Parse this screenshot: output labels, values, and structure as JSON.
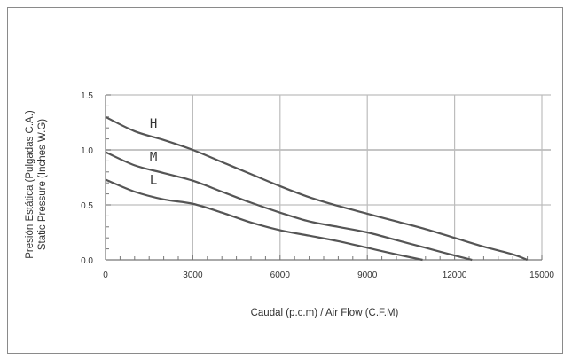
{
  "chart_data": {
    "type": "line",
    "xlabel": "Caudal (p.c.m) / Air Flow (C.F.M)",
    "ylabel_lines": [
      "Presión Estática (Pulgadas C.A.)",
      "Static Pressure (Inches W.G)"
    ],
    "xlim": [
      0,
      15000
    ],
    "ylim": [
      0,
      1.5
    ],
    "x_ticks": [
      0,
      3000,
      6000,
      9000,
      12000,
      15000
    ],
    "x_tick_labels": [
      "0",
      "3000",
      "6000",
      "9000",
      "12000",
      "15000"
    ],
    "y_ticks": [
      0,
      0.5,
      1.0,
      1.5
    ],
    "y_tick_labels": [
      "0.0",
      "0.5",
      "1.0",
      "1.5"
    ],
    "grid": true,
    "series": [
      {
        "name": "H",
        "x": [
          0,
          1000,
          2000,
          3000,
          4000,
          5000,
          6000,
          7000,
          8000,
          9000,
          10000,
          11000,
          12000,
          13000,
          14000,
          14500
        ],
        "y": [
          1.3,
          1.17,
          1.09,
          1.0,
          0.89,
          0.78,
          0.67,
          0.57,
          0.49,
          0.42,
          0.35,
          0.28,
          0.2,
          0.12,
          0.05,
          0.0
        ]
      },
      {
        "name": "M",
        "x": [
          0,
          1000,
          2000,
          3000,
          4000,
          5000,
          6000,
          7000,
          8000,
          9000,
          10000,
          11000,
          12000,
          12600
        ],
        "y": [
          0.98,
          0.86,
          0.79,
          0.72,
          0.62,
          0.52,
          0.43,
          0.35,
          0.3,
          0.25,
          0.18,
          0.11,
          0.04,
          0.0
        ]
      },
      {
        "name": "L",
        "x": [
          0,
          1000,
          2000,
          3000,
          4000,
          5000,
          6000,
          7000,
          8000,
          9000,
          10000,
          10900
        ],
        "y": [
          0.73,
          0.62,
          0.55,
          0.51,
          0.43,
          0.34,
          0.27,
          0.22,
          0.17,
          0.11,
          0.05,
          0.0
        ]
      }
    ],
    "curve_labels": [
      {
        "text": "H",
        "x": 1650,
        "y": 1.2
      },
      {
        "text": "M",
        "x": 1650,
        "y": 0.9
      },
      {
        "text": "L",
        "x": 1650,
        "y": 0.69
      }
    ]
  },
  "style": {
    "line_color": "#555555",
    "grid_color": "#bdbdbd",
    "frame_color": "#8a8a8a"
  }
}
